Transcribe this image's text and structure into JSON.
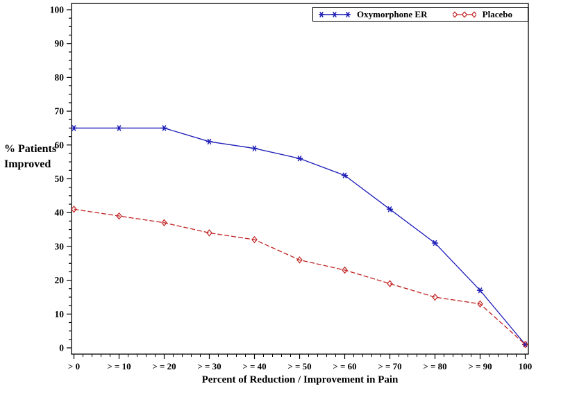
{
  "figure": {
    "y_axis_label_lines": [
      "% Patients",
      "Improved"
    ],
    "x_axis_title": "Percent of Reduction / Improvement in Pain",
    "background_color": "#ffffff",
    "axis_color": "#000000"
  },
  "legend": {
    "items": [
      {
        "label": "Oxymorphone ER",
        "color": "#1c1cb8",
        "marker": "star-icon"
      },
      {
        "label": "Placebo",
        "color": "#c22222",
        "marker": "diamond-icon"
      }
    ]
  },
  "chart_data": {
    "type": "line",
    "title": "",
    "xlabel": "Percent of Reduction / Improvement in Pain",
    "ylabel": "% Patients Improved",
    "categories": [
      "> 0",
      "> = 10",
      "> = 20",
      "> = 30",
      "> = 40",
      "> = 50",
      "> = 60",
      "> = 70",
      "> = 80",
      "> = 90",
      "100"
    ],
    "series": [
      {
        "name": "Oxymorphone ER",
        "color": "#1c1cb8",
        "marker": "star",
        "line_style": "solid",
        "values": [
          65,
          65,
          65,
          61,
          59,
          56,
          51,
          41,
          31,
          17,
          1
        ]
      },
      {
        "name": "Placebo",
        "color": "#c22222",
        "marker": "diamond",
        "line_style": "dashed",
        "values": [
          41,
          39,
          37,
          34,
          32,
          26,
          23,
          19,
          15,
          13,
          1
        ]
      }
    ],
    "ylim": [
      0,
      100
    ],
    "y_ticks": [
      0,
      10,
      20,
      30,
      40,
      50,
      60,
      70,
      80,
      90,
      100
    ],
    "y_minor_subdivisions": 4,
    "x_minor_subdivisions": 5,
    "grid": false,
    "legend_position": "top-right",
    "frame": true
  }
}
